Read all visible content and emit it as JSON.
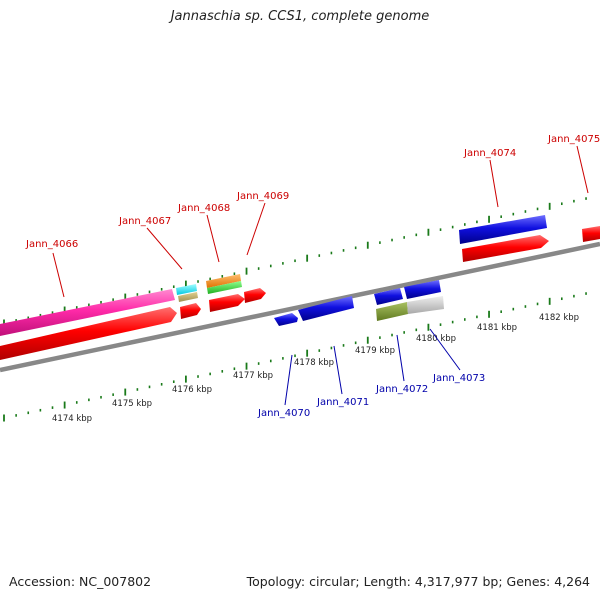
{
  "title": "Jannaschia sp. CCS1, complete genome",
  "accession": "Accession: NC_007802",
  "summary": "Topology: circular; Length: 4,317,977 bp; Genes: 4,264",
  "colors": {
    "forward_label": "#cc0000",
    "reverse_label": "#0000aa",
    "tick": "#1a7a1a",
    "backbone": "#888888"
  },
  "ruler": [
    "4174 kbp",
    "4175 kbp",
    "4176 kbp",
    "4177 kbp",
    "4178 kbp",
    "4179 kbp",
    "4180 kbp",
    "4181 kbp",
    "4182 kbp"
  ],
  "genes_forward": [
    "Jann_4066",
    "Jann_4067",
    "Jann_4068",
    "Jann_4069",
    "Jann_4074",
    "Jann_4075"
  ],
  "genes_reverse": [
    "Jann_4070",
    "Jann_4071",
    "Jann_4072",
    "Jann_4073"
  ]
}
